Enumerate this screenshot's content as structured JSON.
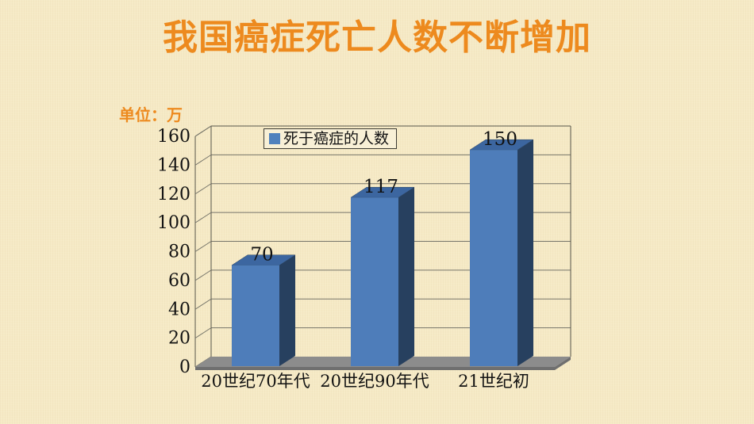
{
  "slide": {
    "title": "我国癌症死亡人数不断增加",
    "unit_label": "单位：万",
    "colors": {
      "background": "#F6EAC6",
      "title_orange": "#ED8A1E",
      "bar_front": "#4E7DBA",
      "bar_top": "#3C66A0",
      "bar_side": "#27405F",
      "floor_gray": "#8C8C8C",
      "floor_dark_gray": "#6F6F6F",
      "wall_border": "#55544A",
      "grid_line": "#76756A",
      "text_black": "#121212",
      "legend_marker_blue": "#4F81BD"
    }
  },
  "chart_data": {
    "type": "bar",
    "style": "3d-column",
    "title": "",
    "categories": [
      "20世纪70年代",
      "20世纪90年代",
      "21世纪初"
    ],
    "series": [
      {
        "name": "死于癌症的人数",
        "values": [
          70,
          117,
          150
        ]
      }
    ],
    "data_labels": [
      "70",
      "117",
      "150"
    ],
    "ylabel": "",
    "xlabel": "",
    "unit": "万",
    "ylim": [
      0,
      160
    ],
    "ytick_step": 20,
    "yticks": [
      "0",
      "20",
      "40",
      "60",
      "80",
      "100",
      "120",
      "140",
      "160"
    ],
    "grid": true,
    "legend_position": "top-inside"
  }
}
